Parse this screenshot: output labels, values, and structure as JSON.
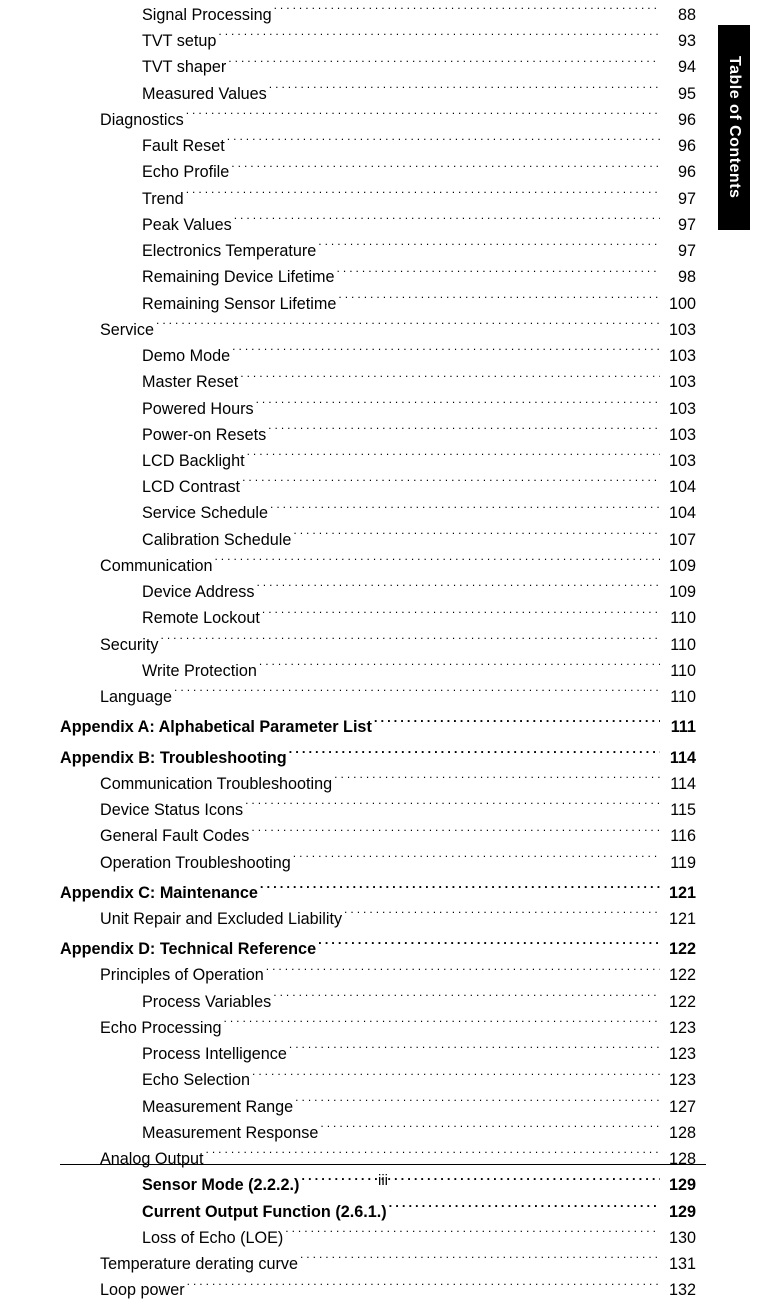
{
  "side_tab": "Table of Contents",
  "footer": "iii",
  "rows": [
    {
      "label": "Signal Processing",
      "page": "88",
      "indent": 2,
      "bold": false
    },
    {
      "label": "TVT setup",
      "page": "93",
      "indent": 2,
      "bold": false
    },
    {
      "label": "TVT shaper",
      "page": "94",
      "indent": 2,
      "bold": false
    },
    {
      "label": "Measured Values",
      "page": "95",
      "indent": 2,
      "bold": false
    },
    {
      "label": "Diagnostics",
      "page": "96",
      "indent": 1,
      "bold": false
    },
    {
      "label": "Fault Reset",
      "page": "96",
      "indent": 2,
      "bold": false
    },
    {
      "label": "Echo Profile",
      "page": "96",
      "indent": 2,
      "bold": false
    },
    {
      "label": "Trend",
      "page": "97",
      "indent": 2,
      "bold": false
    },
    {
      "label": "Peak Values",
      "page": "97",
      "indent": 2,
      "bold": false
    },
    {
      "label": "Electronics Temperature",
      "page": "97",
      "indent": 2,
      "bold": false
    },
    {
      "label": "Remaining Device Lifetime",
      "page": "98",
      "indent": 2,
      "bold": false
    },
    {
      "label": "Remaining Sensor Lifetime",
      "page": " 100",
      "indent": 2,
      "bold": false
    },
    {
      "label": "Service",
      "page": " 103",
      "indent": 1,
      "bold": false
    },
    {
      "label": "Demo Mode",
      "page": " 103",
      "indent": 2,
      "bold": false
    },
    {
      "label": "Master Reset",
      "page": " 103",
      "indent": 2,
      "bold": false
    },
    {
      "label": "Powered Hours",
      "page": " 103",
      "indent": 2,
      "bold": false
    },
    {
      "label": "Power-on Resets",
      "page": " 103",
      "indent": 2,
      "bold": false
    },
    {
      "label": "LCD Backlight",
      "page": " 103",
      "indent": 2,
      "bold": false
    },
    {
      "label": "LCD Contrast",
      "page": " 104",
      "indent": 2,
      "bold": false
    },
    {
      "label": "Service Schedule",
      "page": " 104",
      "indent": 2,
      "bold": false
    },
    {
      "label": "Calibration Schedule",
      "page": " 107",
      "indent": 2,
      "bold": false
    },
    {
      "label": "Communication",
      "page": " 109",
      "indent": 1,
      "bold": false
    },
    {
      "label": "Device Address",
      "page": " 109",
      "indent": 2,
      "bold": false
    },
    {
      "label": "Remote Lockout",
      "page": " 110",
      "indent": 2,
      "bold": false
    },
    {
      "label": "Security",
      "page": " 110",
      "indent": 1,
      "bold": false
    },
    {
      "label": "Write Protection",
      "page": " 110",
      "indent": 2,
      "bold": false
    },
    {
      "label": "Language",
      "page": " 110",
      "indent": 1,
      "bold": false
    },
    {
      "label": "Appendix A: Alphabetical Parameter List ",
      "page": "111",
      "indent": 0,
      "bold": true,
      "gap": true
    },
    {
      "label": "Appendix B: Troubleshooting ",
      "page": "114",
      "indent": 0,
      "bold": true,
      "gap": true
    },
    {
      "label": "Communication Troubleshooting ",
      "page": "114",
      "indent": 1,
      "bold": false
    },
    {
      "label": "Device Status Icons ",
      "page": "115",
      "indent": 1,
      "bold": false
    },
    {
      "label": "General Fault Codes ",
      "page": "116",
      "indent": 1,
      "bold": false
    },
    {
      "label": "Operation Troubleshooting ",
      "page": "119",
      "indent": 1,
      "bold": false
    },
    {
      "label": "Appendix C: Maintenance ",
      "page": "121",
      "indent": 0,
      "bold": true,
      "gap": true
    },
    {
      "label": "Unit Repair and Excluded Liability ",
      "page": "121",
      "indent": 1,
      "bold": false
    },
    {
      "label": "Appendix D: Technical Reference ",
      "page": "122",
      "indent": 0,
      "bold": true,
      "gap": true
    },
    {
      "label": "Principles of Operation ",
      "page": "122",
      "indent": 1,
      "bold": false
    },
    {
      "label": "Process Variables ",
      "page": "122",
      "indent": 2,
      "bold": false
    },
    {
      "label": "Echo Processing ",
      "page": "123",
      "indent": 1,
      "bold": false
    },
    {
      "label": "Process Intelligence ",
      "page": "123",
      "indent": 2,
      "bold": false
    },
    {
      "label": "Echo Selection ",
      "page": "123",
      "indent": 2,
      "bold": false
    },
    {
      "label": "Measurement Range ",
      "page": "127",
      "indent": 2,
      "bold": false
    },
    {
      "label": "Measurement Response ",
      "page": "128",
      "indent": 2,
      "bold": false
    },
    {
      "label": "Analog Output ",
      "page": "128",
      "indent": 1,
      "bold": false
    },
    {
      "label": "Sensor Mode (2.2.2.) ",
      "page": "129",
      "indent": 2,
      "bold": true
    },
    {
      "label": "Current Output Function (2.6.1.) ",
      "page": "129",
      "indent": 2,
      "bold": true
    },
    {
      "label": "Loss of Echo (LOE) ",
      "page": "130",
      "indent": 2,
      "bold": false
    },
    {
      "label": "Temperature derating curve  ",
      "page": "131",
      "indent": 1,
      "bold": false
    },
    {
      "label": "Loop power ",
      "page": "132",
      "indent": 1,
      "bold": false
    }
  ]
}
